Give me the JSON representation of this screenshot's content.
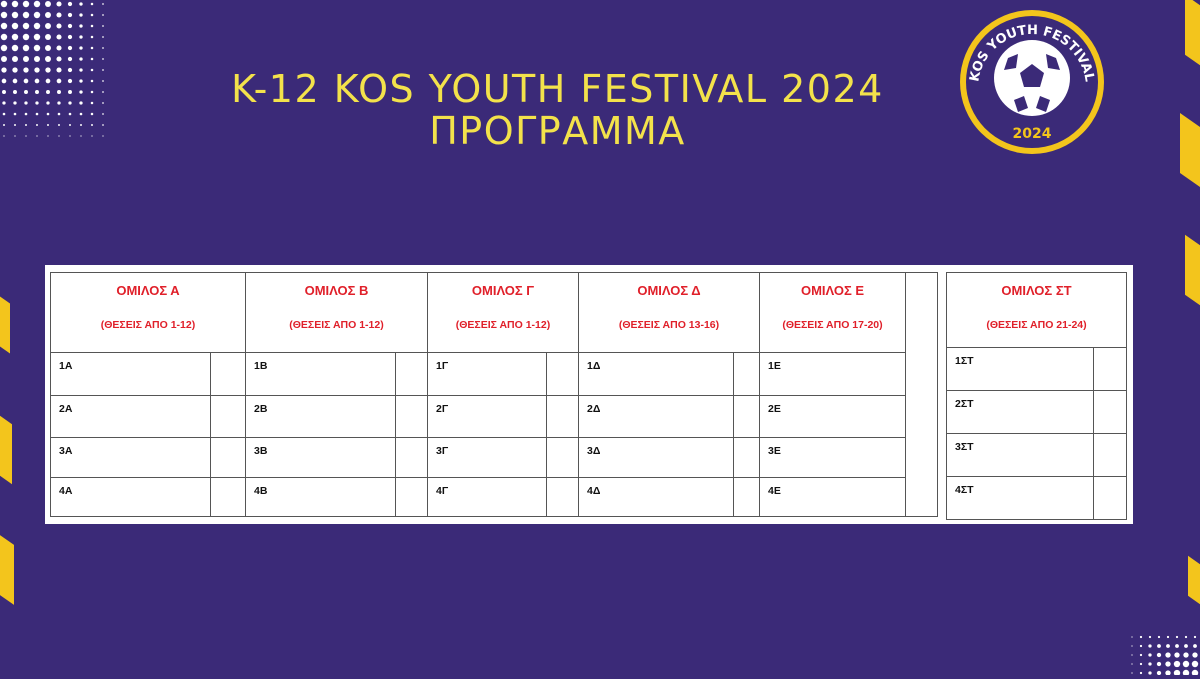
{
  "header": {
    "title_line1": "K-12 KOS YOUTH FESTIVAL 2024",
    "title_line2": "ΠΡΟΓΡΑΜΜΑ"
  },
  "logo": {
    "text_top": "KOS YOUTH FESTIVAL",
    "year": "2024",
    "icon": "soccer-ball-icon"
  },
  "colors": {
    "background": "#3b2a78",
    "accent_yellow": "#f3e24b",
    "header_red": "#e0202a"
  },
  "groups": [
    {
      "name": "ΟΜΙΛΟΣ Α",
      "positions": "(ΘΕΣΕΙΣ ΑΠΟ 1-12)",
      "rows": [
        "1Α",
        "2Α",
        "3Α",
        "4Α"
      ]
    },
    {
      "name": "ΟΜΙΛΟΣ Β",
      "positions": "(ΘΕΣΕΙΣ ΑΠΟ 1-12)",
      "rows": [
        "1Β",
        "2Β",
        "3Β",
        "4Β"
      ]
    },
    {
      "name": "ΟΜΙΛΟΣ Γ",
      "positions": "(ΘΕΣΕΙΣ ΑΠΟ 1-12)",
      "rows": [
        "1Γ",
        "2Γ",
        "3Γ",
        "4Γ"
      ]
    },
    {
      "name": "ΟΜΙΛΟΣ Δ",
      "positions": "(ΘΕΣΕΙΣ ΑΠΟ 13-16)",
      "rows": [
        "1Δ",
        "2Δ",
        "3Δ",
        "4Δ"
      ]
    },
    {
      "name": "ΟΜΙΛΟΣ Ε",
      "positions": "(ΘΕΣΕΙΣ ΑΠΟ 17-20)",
      "rows": [
        "1Ε",
        "2Ε",
        "3Ε",
        "4Ε"
      ]
    },
    {
      "name": "ΟΜΙΛΟΣ ΣΤ",
      "positions": "(ΘΕΣΕΙΣ ΑΠΟ 21-24)",
      "rows": [
        "1ΣΤ",
        "2ΣΤ",
        "3ΣΤ",
        "4ΣΤ"
      ]
    }
  ]
}
